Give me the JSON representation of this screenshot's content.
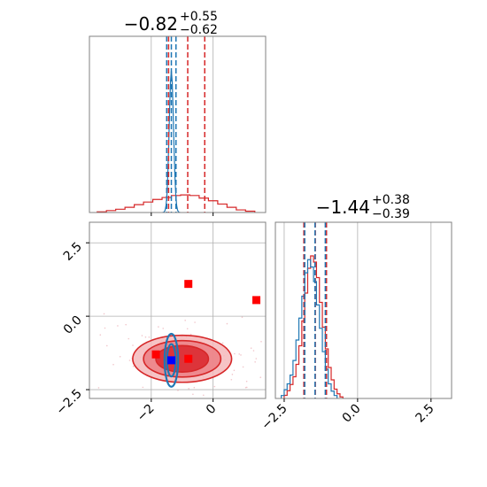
{
  "chart_data": {
    "type": "corner",
    "parameters": 2,
    "colors": {
      "red": "#d62728",
      "blue": "#1f77b4",
      "truth_red": "#ff0000",
      "truth_blue": "#0000ff",
      "grid": "#b0b0b0"
    },
    "titles": [
      {
        "main": "−0.82",
        "sup": "+0.55",
        "sub": "−0.62"
      },
      {
        "main": "−1.44",
        "sup": "+0.38",
        "sub": "−0.39"
      }
    ],
    "x_ticks_param0": [
      "−2",
      "0"
    ],
    "x_ticks_param0_values": [
      -2,
      0
    ],
    "x_ticks_param1": [
      "−2.5",
      "0.0",
      "2.5"
    ],
    "x_ticks_param1_values": [
      -2.5,
      0.0,
      2.5
    ],
    "y_ticks_param1": [
      "2.5",
      "0.0",
      "−2.5"
    ],
    "y_ticks_param1_values": [
      2.5,
      0.0,
      -2.5
    ],
    "xlim_param0": [
      -4.0,
      1.7
    ],
    "ylim_param1": [
      -2.8,
      3.2
    ],
    "xlim_param1_diag": [
      -2.8,
      3.2
    ],
    "grid": true,
    "series": [
      {
        "color": "red",
        "marginal_param0_quantiles": [
          -1.44,
          -0.82,
          -0.27
        ],
        "marginal_param1_quantiles": [
          -1.83,
          -1.44,
          -1.06
        ],
        "marginal_param0_hist": {
          "bin_centers": [
            -3.6,
            -3.3,
            -3.0,
            -2.7,
            -2.4,
            -2.1,
            -1.8,
            -1.5,
            -1.2,
            -0.9,
            -0.6,
            -0.3,
            0.0,
            0.3,
            0.6,
            0.9,
            1.2
          ],
          "heights": [
            0.01,
            0.03,
            0.05,
            0.08,
            0.12,
            0.16,
            0.2,
            0.23,
            0.26,
            0.27,
            0.26,
            0.22,
            0.18,
            0.13,
            0.08,
            0.04,
            0.02
          ]
        },
        "marginal_param1_hist": {
          "bin_centers": [
            -2.45,
            -2.35,
            -2.25,
            -2.15,
            -2.05,
            -1.95,
            -1.85,
            -1.75,
            -1.65,
            -1.55,
            -1.45,
            -1.35,
            -1.25,
            -1.15,
            -1.05,
            -0.95,
            -0.85,
            -0.75,
            -0.65,
            -0.55
          ],
          "heights": [
            0.02,
            0.05,
            0.09,
            0.14,
            0.22,
            0.34,
            0.5,
            0.68,
            0.84,
            0.92,
            0.88,
            0.78,
            0.62,
            0.46,
            0.32,
            0.2,
            0.12,
            0.06,
            0.03,
            0.01
          ]
        },
        "contour_center": [
          -1.0,
          -1.45
        ],
        "contour_radii": [
          [
            1.6,
            0.8
          ],
          [
            1.25,
            0.62
          ],
          [
            0.85,
            0.45
          ]
        ]
      },
      {
        "color": "blue",
        "marginal_param0_quantiles": [
          -1.5,
          -1.35,
          -1.2
        ],
        "marginal_param1_quantiles": [
          -1.8,
          -1.45,
          -1.1
        ],
        "marginal_param0_peak": -1.35,
        "marginal_param1_hist": {
          "bin_centers": [
            -2.55,
            -2.45,
            -2.35,
            -2.25,
            -2.15,
            -2.05,
            -1.95,
            -1.85,
            -1.75,
            -1.65,
            -1.55,
            -1.45,
            -1.35,
            -1.25,
            -1.15,
            -1.05,
            -0.95,
            -0.85,
            -0.75
          ],
          "heights": [
            0.02,
            0.06,
            0.1,
            0.16,
            0.26,
            0.4,
            0.55,
            0.7,
            0.86,
            0.95,
            0.9,
            0.8,
            0.64,
            0.48,
            0.32,
            0.2,
            0.1,
            0.05,
            0.02
          ]
        },
        "contour_center": [
          -1.35,
          -1.5
        ],
        "contour_radii": [
          [
            0.22,
            0.9
          ],
          [
            0.14,
            0.55
          ]
        ]
      }
    ],
    "truth_points": [
      {
        "x": -0.8,
        "y": 1.1,
        "color": "truth_red"
      },
      {
        "x": 1.4,
        "y": 0.55,
        "color": "truth_red"
      },
      {
        "x": -1.85,
        "y": -1.3,
        "color": "truth_red"
      },
      {
        "x": -0.8,
        "y": -1.45,
        "color": "truth_red"
      },
      {
        "x": -1.35,
        "y": -1.5,
        "color": "truth_blue"
      }
    ]
  }
}
